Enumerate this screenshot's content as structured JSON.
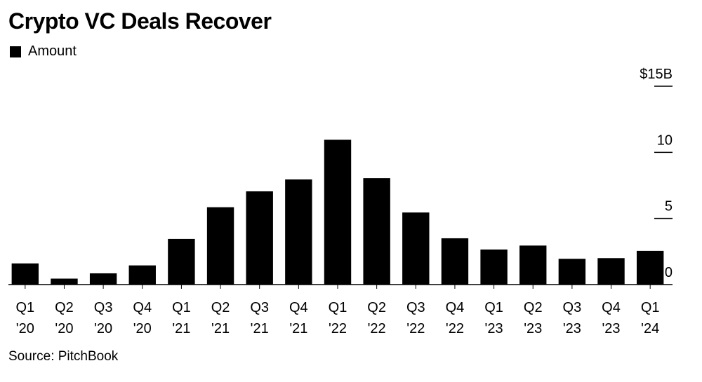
{
  "chart_data": {
    "type": "bar",
    "title": "Crypto VC Deals Recover",
    "source": "Source: PitchBook",
    "legend": [
      "Amount"
    ],
    "bar_color": "#000000",
    "ylim": [
      0,
      15
    ],
    "yticks": [
      {
        "value": 0,
        "label": "0"
      },
      {
        "value": 5,
        "label": "5"
      },
      {
        "value": 10,
        "label": "10"
      },
      {
        "value": 15,
        "label": "$15B"
      }
    ],
    "categories": [
      [
        "Q1",
        "'20"
      ],
      [
        "Q2",
        "'20"
      ],
      [
        "Q3",
        "'20"
      ],
      [
        "Q4",
        "'20"
      ],
      [
        "Q1",
        "'21"
      ],
      [
        "Q2",
        "'21"
      ],
      [
        "Q3",
        "'21"
      ],
      [
        "Q4",
        "'21"
      ],
      [
        "Q1",
        "'22"
      ],
      [
        "Q2",
        "'22"
      ],
      [
        "Q3",
        "'22"
      ],
      [
        "Q4",
        "'22"
      ],
      [
        "Q1",
        "'23"
      ],
      [
        "Q2",
        "'23"
      ],
      [
        "Q3",
        "'23"
      ],
      [
        "Q4",
        "'23"
      ],
      [
        "Q1",
        "'24"
      ]
    ],
    "series": [
      {
        "name": "Amount",
        "values": [
          1.6,
          0.45,
          0.85,
          1.45,
          3.45,
          5.85,
          7.05,
          7.95,
          10.95,
          8.05,
          5.45,
          3.5,
          2.65,
          2.95,
          1.95,
          2.0,
          2.55
        ]
      }
    ]
  }
}
